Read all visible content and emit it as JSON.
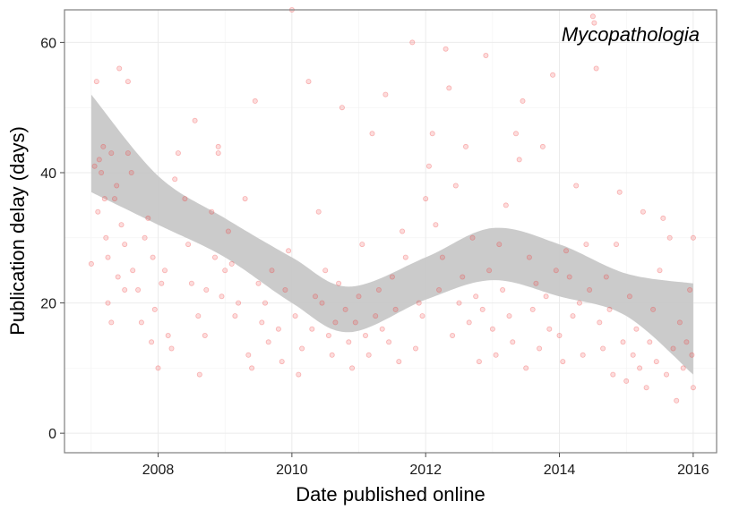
{
  "chart_data": {
    "type": "scatter",
    "title": "",
    "annotation": "Mycopathologia",
    "xlabel": "Date published online",
    "ylabel": "Publication delay (days)",
    "xlim": [
      2006.6,
      2016.35
    ],
    "ylim": [
      -3,
      65
    ],
    "x_ticks": [
      2008,
      2010,
      2012,
      2014,
      2016
    ],
    "x_tick_labels": [
      "2008",
      "2010",
      "2012",
      "2014",
      "2016"
    ],
    "y_ticks": [
      0,
      20,
      40,
      60
    ],
    "y_tick_labels": [
      "0",
      "20",
      "40",
      "60"
    ],
    "grid": true,
    "colors": {
      "points": "#f03c3c",
      "ribbon": "#c8c8c8",
      "grid": "#ebebeb",
      "frame": "#7f7f7f"
    },
    "series": [
      {
        "type": "scatter",
        "points": [
          [
            2007.0,
            26
          ],
          [
            2007.05,
            41
          ],
          [
            2007.08,
            54
          ],
          [
            2007.1,
            34
          ],
          [
            2007.12,
            42
          ],
          [
            2007.15,
            40
          ],
          [
            2007.18,
            44
          ],
          [
            2007.2,
            36
          ],
          [
            2007.22,
            30
          ],
          [
            2007.25,
            27
          ],
          [
            2007.25,
            20
          ],
          [
            2007.3,
            43
          ],
          [
            2007.3,
            17
          ],
          [
            2007.35,
            36
          ],
          [
            2007.38,
            38
          ],
          [
            2007.4,
            24
          ],
          [
            2007.42,
            56
          ],
          [
            2007.45,
            32
          ],
          [
            2007.5,
            29
          ],
          [
            2007.5,
            22
          ],
          [
            2007.55,
            43
          ],
          [
            2007.55,
            54
          ],
          [
            2007.6,
            40
          ],
          [
            2007.62,
            25
          ],
          [
            2007.7,
            22
          ],
          [
            2007.75,
            17
          ],
          [
            2007.8,
            30
          ],
          [
            2007.85,
            33
          ],
          [
            2007.9,
            14
          ],
          [
            2007.92,
            27
          ],
          [
            2007.95,
            19
          ],
          [
            2008.0,
            10
          ],
          [
            2008.05,
            23
          ],
          [
            2008.1,
            25
          ],
          [
            2008.15,
            15
          ],
          [
            2008.2,
            13
          ],
          [
            2008.25,
            39
          ],
          [
            2008.3,
            43
          ],
          [
            2008.4,
            36
          ],
          [
            2008.45,
            29
          ],
          [
            2008.5,
            23
          ],
          [
            2008.55,
            48
          ],
          [
            2008.6,
            18
          ],
          [
            2008.62,
            9
          ],
          [
            2008.7,
            15
          ],
          [
            2008.72,
            22
          ],
          [
            2008.8,
            34
          ],
          [
            2008.85,
            27
          ],
          [
            2008.9,
            43
          ],
          [
            2008.9,
            44
          ],
          [
            2008.95,
            21
          ],
          [
            2009.0,
            25
          ],
          [
            2009.05,
            31
          ],
          [
            2009.1,
            26
          ],
          [
            2009.15,
            18
          ],
          [
            2009.2,
            20
          ],
          [
            2009.3,
            36
          ],
          [
            2009.35,
            12
          ],
          [
            2009.4,
            10
          ],
          [
            2009.45,
            51
          ],
          [
            2009.5,
            23
          ],
          [
            2009.55,
            17
          ],
          [
            2009.6,
            20
          ],
          [
            2009.65,
            14
          ],
          [
            2009.7,
            25
          ],
          [
            2009.8,
            16
          ],
          [
            2009.85,
            11
          ],
          [
            2009.9,
            22
          ],
          [
            2009.95,
            28
          ],
          [
            2010.0,
            65
          ],
          [
            2010.05,
            18
          ],
          [
            2010.1,
            9
          ],
          [
            2010.15,
            13
          ],
          [
            2010.25,
            54
          ],
          [
            2010.3,
            16
          ],
          [
            2010.35,
            21
          ],
          [
            2010.4,
            34
          ],
          [
            2010.45,
            20
          ],
          [
            2010.5,
            25
          ],
          [
            2010.55,
            15
          ],
          [
            2010.6,
            12
          ],
          [
            2010.65,
            17
          ],
          [
            2010.7,
            23
          ],
          [
            2010.75,
            50
          ],
          [
            2010.8,
            19
          ],
          [
            2010.85,
            14
          ],
          [
            2010.9,
            10
          ],
          [
            2010.95,
            17
          ],
          [
            2011.0,
            21
          ],
          [
            2011.05,
            29
          ],
          [
            2011.1,
            15
          ],
          [
            2011.15,
            12
          ],
          [
            2011.2,
            46
          ],
          [
            2011.25,
            18
          ],
          [
            2011.3,
            22
          ],
          [
            2011.35,
            16
          ],
          [
            2011.4,
            52
          ],
          [
            2011.45,
            14
          ],
          [
            2011.5,
            24
          ],
          [
            2011.55,
            19
          ],
          [
            2011.6,
            11
          ],
          [
            2011.65,
            31
          ],
          [
            2011.7,
            27
          ],
          [
            2011.8,
            60
          ],
          [
            2011.85,
            13
          ],
          [
            2011.9,
            20
          ],
          [
            2011.95,
            18
          ],
          [
            2012.0,
            36
          ],
          [
            2012.05,
            41
          ],
          [
            2012.1,
            46
          ],
          [
            2012.15,
            32
          ],
          [
            2012.2,
            22
          ],
          [
            2012.25,
            27
          ],
          [
            2012.3,
            59
          ],
          [
            2012.35,
            53
          ],
          [
            2012.4,
            15
          ],
          [
            2012.45,
            38
          ],
          [
            2012.5,
            20
          ],
          [
            2012.55,
            24
          ],
          [
            2012.6,
            44
          ],
          [
            2012.65,
            17
          ],
          [
            2012.7,
            30
          ],
          [
            2012.75,
            21
          ],
          [
            2012.8,
            11
          ],
          [
            2012.85,
            19
          ],
          [
            2012.9,
            58
          ],
          [
            2012.95,
            25
          ],
          [
            2013.0,
            16
          ],
          [
            2013.05,
            12
          ],
          [
            2013.1,
            29
          ],
          [
            2013.15,
            22
          ],
          [
            2013.2,
            35
          ],
          [
            2013.25,
            18
          ],
          [
            2013.3,
            14
          ],
          [
            2013.35,
            46
          ],
          [
            2013.4,
            42
          ],
          [
            2013.45,
            51
          ],
          [
            2013.5,
            10
          ],
          [
            2013.55,
            27
          ],
          [
            2013.6,
            19
          ],
          [
            2013.65,
            23
          ],
          [
            2013.7,
            13
          ],
          [
            2013.75,
            44
          ],
          [
            2013.8,
            21
          ],
          [
            2013.85,
            16
          ],
          [
            2013.9,
            55
          ],
          [
            2013.95,
            25
          ],
          [
            2014.0,
            15
          ],
          [
            2014.05,
            11
          ],
          [
            2014.1,
            28
          ],
          [
            2014.15,
            24
          ],
          [
            2014.2,
            18
          ],
          [
            2014.25,
            38
          ],
          [
            2014.3,
            20
          ],
          [
            2014.35,
            12
          ],
          [
            2014.4,
            29
          ],
          [
            2014.45,
            22
          ],
          [
            2014.5,
            64
          ],
          [
            2014.52,
            63
          ],
          [
            2014.55,
            56
          ],
          [
            2014.6,
            17
          ],
          [
            2014.65,
            13
          ],
          [
            2014.7,
            24
          ],
          [
            2014.75,
            19
          ],
          [
            2014.8,
            9
          ],
          [
            2014.85,
            29
          ],
          [
            2014.9,
            37
          ],
          [
            2014.95,
            14
          ],
          [
            2015.0,
            8
          ],
          [
            2015.05,
            21
          ],
          [
            2015.1,
            12
          ],
          [
            2015.15,
            16
          ],
          [
            2015.2,
            10
          ],
          [
            2015.25,
            34
          ],
          [
            2015.3,
            7
          ],
          [
            2015.35,
            14
          ],
          [
            2015.4,
            19
          ],
          [
            2015.45,
            11
          ],
          [
            2015.5,
            25
          ],
          [
            2015.55,
            33
          ],
          [
            2015.6,
            9
          ],
          [
            2015.65,
            30
          ],
          [
            2015.7,
            13
          ],
          [
            2015.75,
            5
          ],
          [
            2015.8,
            17
          ],
          [
            2015.85,
            10
          ],
          [
            2015.9,
            14
          ],
          [
            2015.95,
            22
          ],
          [
            2016.0,
            30
          ],
          [
            2016.0,
            7
          ],
          [
            2015.98,
            12
          ]
        ]
      },
      {
        "type": "smooth_ribbon",
        "x": [
          2007.0,
          2008.0,
          2009.0,
          2010.0,
          2010.85,
          2012.0,
          2013.0,
          2014.0,
          2015.0,
          2016.0
        ],
        "fit": [
          44.5,
          35.5,
          30,
          23.5,
          19,
          23.5,
          27.5,
          25,
          20.5,
          16
        ],
        "lower": [
          37,
          32,
          27,
          20,
          15.5,
          20.5,
          23.5,
          21,
          18,
          9
        ],
        "upper": [
          52,
          39.5,
          33,
          27,
          22.5,
          27,
          31.5,
          29,
          24.5,
          23
        ]
      }
    ]
  }
}
